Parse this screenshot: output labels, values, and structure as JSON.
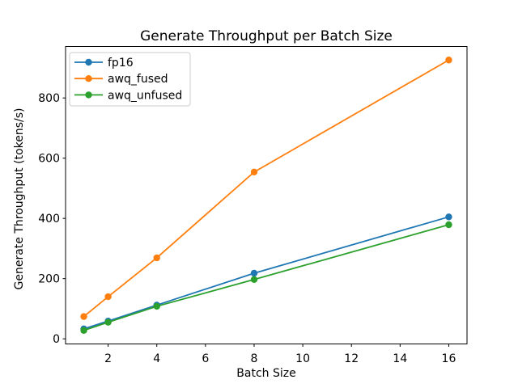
{
  "chart_data": {
    "type": "line",
    "title": "Generate Throughput per Batch Size",
    "xlabel": "Batch Size",
    "ylabel": "Generate Throughput (tokens/s)",
    "x": [
      1,
      2,
      4,
      8,
      16
    ],
    "series": [
      {
        "name": "fp16",
        "color": "#1f77b4",
        "values": [
          33,
          59,
          112,
          218,
          405
        ]
      },
      {
        "name": "awq_fused",
        "color": "#ff7f0e",
        "values": [
          74,
          140,
          269,
          554,
          926
        ]
      },
      {
        "name": "awq_unfused",
        "color": "#2ca02c",
        "values": [
          28,
          55,
          108,
          197,
          379
        ]
      }
    ],
    "xticks": [
      2,
      4,
      6,
      8,
      10,
      12,
      14,
      16
    ],
    "yticks": [
      0,
      200,
      400,
      600,
      800
    ],
    "xlim": [
      0.25,
      16.75
    ],
    "ylim": [
      -17,
      971
    ],
    "legend_position": "upper left",
    "grid": false,
    "marker": "o",
    "colors": {
      "background": "#ffffff",
      "text": "#000000",
      "spine": "#000000",
      "legend_border": "#cccccc"
    }
  }
}
